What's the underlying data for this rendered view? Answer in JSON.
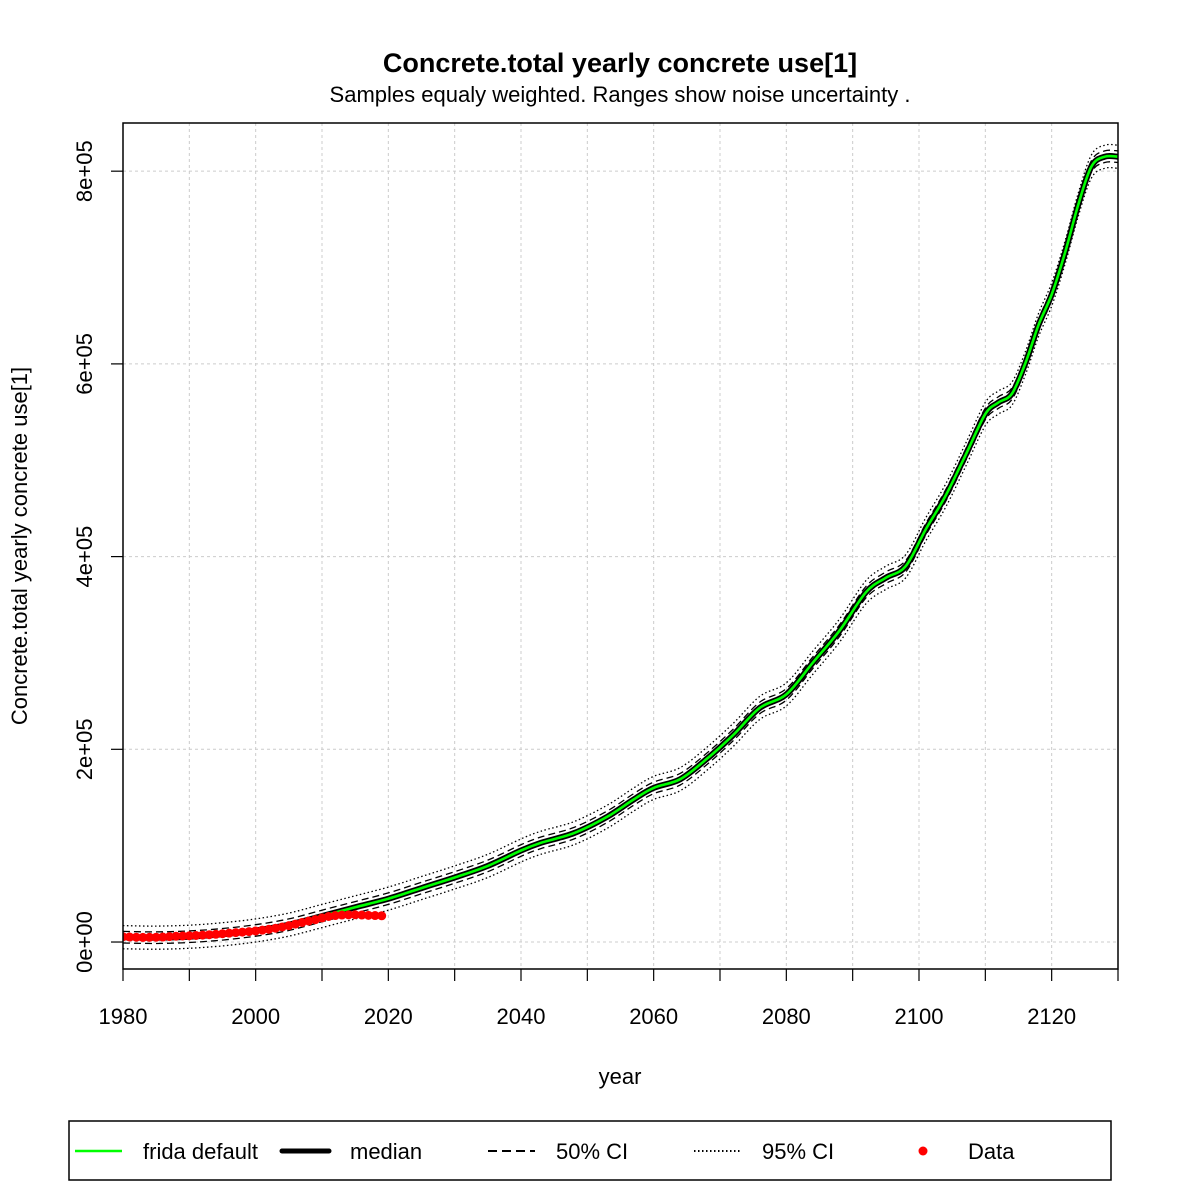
{
  "chart_data": {
    "type": "line",
    "title": "Concrete.total yearly concrete use[1]",
    "subtitle": "Samples equaly weighted. Ranges show  noise uncertainty .",
    "xlabel": "year",
    "ylabel": "Concrete.total yearly concrete use[1]",
    "xlim": [
      1980,
      2130
    ],
    "ylim": [
      -28000,
      850000
    ],
    "grid": true,
    "x_ticks": [
      {
        "value": 1980,
        "label": "1980"
      },
      {
        "value": 2000,
        "label": "2000"
      },
      {
        "value": 2020,
        "label": "2020"
      },
      {
        "value": 2040,
        "label": "2040"
      },
      {
        "value": 2060,
        "label": "2060"
      },
      {
        "value": 2080,
        "label": "2080"
      },
      {
        "value": 2100,
        "label": "2100"
      },
      {
        "value": 2120,
        "label": "2120"
      }
    ],
    "x_minor_ticks": [
      1990,
      2010,
      2030,
      2050,
      2070,
      2090,
      2110,
      2130
    ],
    "y_ticks": [
      {
        "value": 0,
        "label": "0e+00"
      },
      {
        "value": 200000,
        "label": "2e+05"
      },
      {
        "value": 400000,
        "label": "4e+05"
      },
      {
        "value": 600000,
        "label": "6e+05"
      },
      {
        "value": 800000,
        "label": "8e+05"
      }
    ],
    "legend": {
      "position": "bottom",
      "entries": [
        {
          "label": "frida default",
          "style": "line",
          "color": "#00ff00"
        },
        {
          "label": "median",
          "style": "thick-line",
          "color": "#000000"
        },
        {
          "label": "50% CI",
          "style": "dashed",
          "color": "#000000"
        },
        {
          "label": "95% CI",
          "style": "dotted",
          "color": "#000000"
        },
        {
          "label": "Data",
          "style": "point",
          "color": "#ff0000"
        }
      ]
    },
    "series": [
      {
        "name": "median",
        "x": [
          1980,
          1985,
          1990,
          1995,
          2000,
          2005,
          2010,
          2015,
          2020,
          2025,
          2030,
          2035,
          2040,
          2043,
          2048,
          2053,
          2057,
          2060,
          2064,
          2068,
          2072,
          2076,
          2080,
          2084,
          2088,
          2092,
          2095,
          2098,
          2101,
          2104,
          2107,
          2110,
          2112,
          2114,
          2116,
          2118,
          2120,
          2122,
          2124,
          2126,
          2128,
          2130
        ],
        "y": [
          5000,
          4500,
          5500,
          8000,
          12000,
          18000,
          27000,
          36000,
          45000,
          56000,
          67000,
          79000,
          95000,
          103000,
          113000,
          130000,
          148000,
          160000,
          169000,
          190000,
          215000,
          243000,
          257000,
          290000,
          323000,
          363000,
          378000,
          390000,
          428000,
          463000,
          505000,
          548000,
          560000,
          569000,
          600000,
          640000,
          672000,
          715000,
          765000,
          805000,
          815000,
          815000
        ]
      },
      {
        "name": "frida default",
        "x": [
          1980,
          1985,
          1990,
          1995,
          2000,
          2005,
          2010,
          2015,
          2020,
          2025,
          2030,
          2035,
          2040,
          2043,
          2048,
          2053,
          2057,
          2060,
          2064,
          2068,
          2072,
          2076,
          2080,
          2084,
          2088,
          2092,
          2095,
          2098,
          2101,
          2104,
          2107,
          2110,
          2112,
          2114,
          2116,
          2118,
          2120,
          2122,
          2124,
          2126,
          2128,
          2130
        ],
        "y": [
          5000,
          4500,
          5500,
          8000,
          12000,
          18000,
          27000,
          36000,
          45000,
          56000,
          67000,
          79000,
          95000,
          103000,
          113000,
          130000,
          148000,
          160000,
          169000,
          190000,
          215000,
          243000,
          257000,
          290000,
          323000,
          363000,
          378000,
          390000,
          428000,
          463000,
          505000,
          548000,
          560000,
          569000,
          600000,
          640000,
          672000,
          715000,
          765000,
          805000,
          815000,
          815000
        ]
      },
      {
        "name": "50% CI",
        "offset_band": 6000
      },
      {
        "name": "95% CI",
        "offset_band": 12000
      },
      {
        "name": "Data",
        "x": [
          1980,
          1981,
          1982,
          1983,
          1984,
          1985,
          1986,
          1987,
          1988,
          1989,
          1990,
          1991,
          1992,
          1993,
          1994,
          1995,
          1996,
          1997,
          1998,
          1999,
          2000,
          2001,
          2002,
          2003,
          2004,
          2005,
          2006,
          2007,
          2008,
          2009,
          2010,
          2011,
          2012,
          2013,
          2014,
          2015,
          2016,
          2017,
          2018,
          2019
        ],
        "y": [
          5500,
          5200,
          5000,
          4800,
          4900,
          5000,
          5200,
          5600,
          6000,
          6300,
          6500,
          6800,
          7200,
          7600,
          8000,
          8600,
          9200,
          9800,
          10300,
          10800,
          11500,
          12300,
          13200,
          14300,
          15600,
          17000,
          18600,
          20300,
          21800,
          23200,
          25000,
          26500,
          27500,
          28000,
          28200,
          28300,
          28000,
          27700,
          27500,
          27200
        ]
      }
    ]
  }
}
